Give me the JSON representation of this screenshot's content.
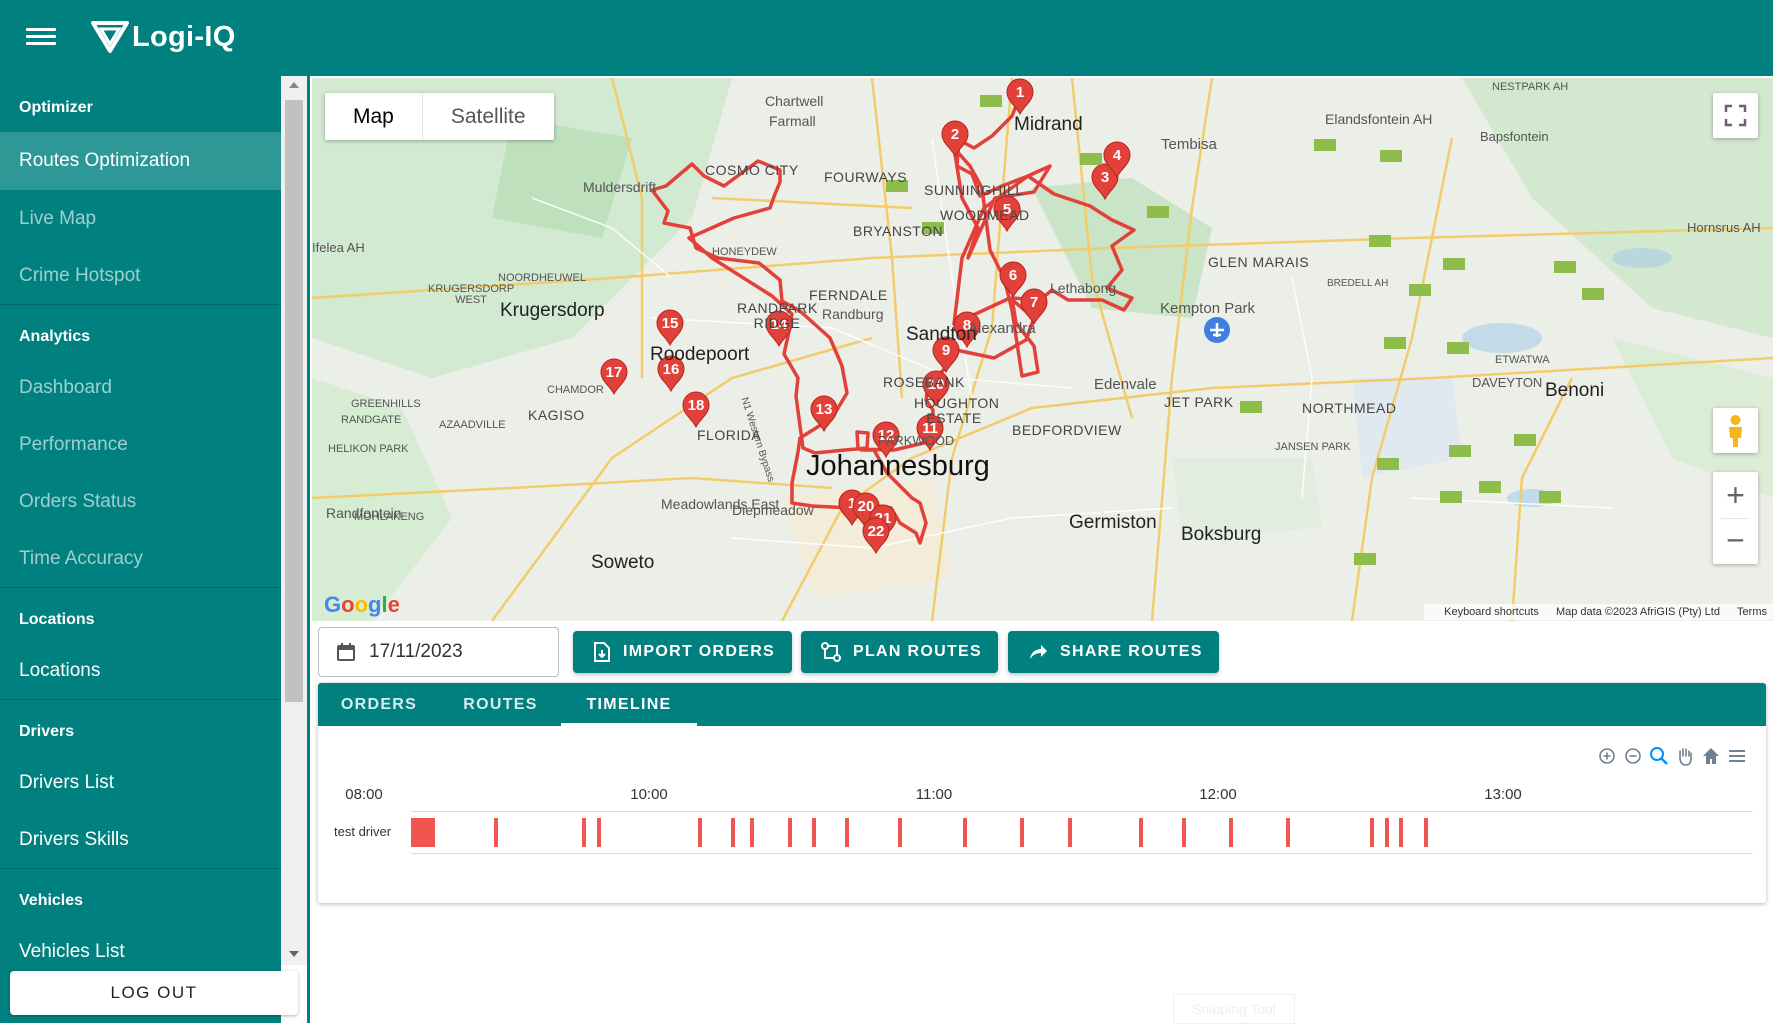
{
  "app": {
    "name": "Logi-IQ"
  },
  "sidebar": {
    "sections": [
      {
        "heading": "Optimizer",
        "items": [
          {
            "label": "Routes Optimization",
            "active": true
          },
          {
            "label": "Live Map"
          },
          {
            "label": "Crime Hotspot"
          }
        ]
      },
      {
        "heading": "Analytics",
        "items": [
          {
            "label": "Dashboard"
          },
          {
            "label": "Performance"
          },
          {
            "label": "Orders Status"
          },
          {
            "label": "Time Accuracy"
          }
        ]
      },
      {
        "heading": "Locations",
        "items": [
          {
            "label": "Locations"
          }
        ]
      },
      {
        "heading": "Drivers",
        "items": [
          {
            "label": "Drivers List"
          },
          {
            "label": "Drivers Skills"
          }
        ]
      },
      {
        "heading": "Vehicles",
        "items": [
          {
            "label": "Vehicles List"
          }
        ]
      }
    ],
    "logout_label": "LOG OUT"
  },
  "map": {
    "type_buttons": {
      "map": "Map",
      "satellite": "Satellite"
    },
    "google_logo": "Google",
    "attribution": {
      "shortcuts": "Keyboard shortcuts",
      "data": "Map data ©2023 AfriGIS (Pty) Ltd",
      "terms": "Terms"
    },
    "labels": {
      "johannesburg": "Johannesburg",
      "sandton": "Sandton",
      "krugersdorp": "Krugersdorp",
      "roodepoort": "Roodepoort",
      "germiston": "Germiston",
      "boksburg": "Boksburg",
      "benoni": "Benoni",
      "soweto": "Soweto",
      "midrand": "Midrand",
      "kempton_park": "Kempton Park",
      "edenvale": "Edenvale",
      "alexandra": "Alexandra",
      "randburg": "Randburg",
      "tembisa": "Tembisa",
      "chartwell": "Chartwell",
      "farmall": "Farmall",
      "muldersdrift": "Muldersdrift",
      "randfontein": "Randfontein",
      "cosmo_city": "COSMO CITY",
      "fourways": "FOURWAYS",
      "sunninghill": "SUNNINGHILL",
      "woodmead": "WOODMEAD",
      "bryanston": "BRYANSTON",
      "ferndale": "FERNDALE",
      "randpark_ridge": "RANDPARK RIDGE",
      "rosebank": "ROSEBANK",
      "houghton_estate": "HOUGHTON ESTATE",
      "bedfordview": "BEDFORDVIEW",
      "jet_park": "JET PARK",
      "northmead": "NORTHMEAD",
      "glen_marais": "GLEN MARAIS",
      "kagiso": "KAGISO",
      "chamdor": "CHAMDOR",
      "florida": "FLORIDA",
      "meadowlands": "Meadowlands East",
      "diepmeadow": "Diepmeadow",
      "lethabong": "Lethabong",
      "honeydew": "HONEYDEW",
      "noordheuwel": "NOORDHEUWEL",
      "mohlakeng": "MOHLAKENG",
      "helikon_park": "HELIKON PARK",
      "azaadville": "AZAADVILLE",
      "greenhills": "GREENHILLS",
      "randgate": "RANDGATE",
      "ifelea": "Ifelea AH",
      "elandsfontein": "Elandsfontein AH",
      "bapsfontein": "Bapsfontein",
      "hornsrus": "Hornsrus AH",
      "daveyton": "DAVEYTON",
      "etwatwa": "ETWATWA",
      "jansen_park": "JANSEN PARK",
      "bredell": "BREDELL AH",
      "nestpark": "NESTPARK AH",
      "krugersdorp_west": "KRUGERSDORP WEST",
      "parkwood": "PARKWOOD",
      "west_bypass": "N1 Western Bypass"
    },
    "stops": [
      "1",
      "2",
      "3",
      "4",
      "5",
      "6",
      "7",
      "8",
      "9",
      "10",
      "11",
      "12",
      "13",
      "14",
      "15",
      "16",
      "17",
      "18",
      "1",
      "20",
      "21",
      "22"
    ],
    "route_color": "#e2413a"
  },
  "toolbar": {
    "date_value": "17/11/2023",
    "import_label": "IMPORT ORDERS",
    "plan_label": "PLAN ROUTES",
    "share_label": "SHARE ROUTES"
  },
  "tabs": [
    {
      "label": "ORDERS"
    },
    {
      "label": "ROUTES"
    },
    {
      "label": "TIMELINE",
      "active": true
    }
  ],
  "timeline": {
    "hours": [
      "08:00",
      "10:00",
      "11:00",
      "12:00",
      "13:00"
    ],
    "driver": "test driver",
    "bar_color": "#f0564f"
  },
  "watermark": "Snipping Tool"
}
